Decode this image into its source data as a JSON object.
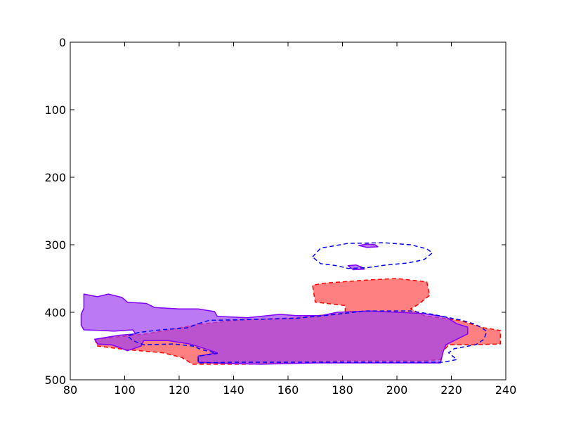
{
  "chart_data": {
    "type": "area",
    "title": "",
    "xlabel": "",
    "ylabel": "",
    "xlim": [
      80,
      240
    ],
    "ylim": [
      500,
      0
    ],
    "y_inverted": true,
    "grid": false,
    "legend": "none",
    "x_ticks": [
      80,
      100,
      120,
      140,
      160,
      180,
      200,
      220,
      240
    ],
    "y_ticks": [
      0,
      100,
      200,
      300,
      400,
      500
    ],
    "series": [
      {
        "style": "red filled region, dashed red outline",
        "fill": "#ff8080",
        "stroke": "#ff0000",
        "regions": [
          [
            [
              89,
              440
            ],
            [
              108,
              432
            ],
            [
              127,
              418
            ],
            [
              140,
              412
            ],
            [
              163,
              408
            ],
            [
              181,
              401
            ],
            [
              181,
              390
            ],
            [
              170,
              385
            ],
            [
              169,
              360
            ],
            [
              173,
              357
            ],
            [
              190,
              352
            ],
            [
              200,
              350
            ],
            [
              211,
              355
            ],
            [
              212,
              375
            ],
            [
              208,
              388
            ],
            [
              205,
              395
            ],
            [
              210,
              405
            ],
            [
              223,
              412
            ],
            [
              232,
              423
            ],
            [
              238,
              427
            ],
            [
              238,
              447
            ],
            [
              228,
              448
            ],
            [
              219,
              448
            ],
            [
              217,
              458
            ],
            [
              216,
              470
            ],
            [
              210,
              472
            ],
            [
              180,
              472
            ],
            [
              159,
              475
            ],
            [
              145,
              477
            ],
            [
              125,
              477
            ],
            [
              121,
              467
            ],
            [
              114,
              460
            ],
            [
              100,
              455
            ],
            [
              90,
              450
            ],
            [
              89,
              440
            ]
          ]
        ]
      },
      {
        "style": "purple filled region, solid purple outline",
        "fill": "#a040f0",
        "stroke": "#8000ff",
        "regions": [
          [
            [
              85,
              373
            ],
            [
              90,
              377
            ],
            [
              94,
              373
            ],
            [
              99,
              378
            ],
            [
              101,
              385
            ],
            [
              108,
              387
            ],
            [
              111,
              393
            ],
            [
              120,
              395
            ],
            [
              127,
              395
            ],
            [
              133,
              399
            ],
            [
              134,
              406
            ],
            [
              145,
              408
            ],
            [
              157,
              403
            ],
            [
              163,
              405
            ],
            [
              172,
              405
            ],
            [
              178,
              400
            ],
            [
              190,
              398
            ],
            [
              200,
              400
            ],
            [
              210,
              402
            ],
            [
              218,
              407
            ],
            [
              222,
              417
            ],
            [
              226,
              422
            ],
            [
              226,
              432
            ],
            [
              218,
              448
            ],
            [
              217,
              458
            ],
            [
              216,
              475
            ],
            [
              190,
              475
            ],
            [
              170,
              475
            ],
            [
              150,
              477
            ],
            [
              140,
              476
            ],
            [
              127,
              474
            ],
            [
              127,
              465
            ],
            [
              134,
              460
            ],
            [
              128,
              452
            ],
            [
              124,
              447
            ],
            [
              116,
              442
            ],
            [
              107,
              442
            ],
            [
              106,
              450
            ],
            [
              101,
              457
            ],
            [
              98,
              452
            ],
            [
              95,
              448
            ],
            [
              90,
              447
            ],
            [
              89,
              440
            ],
            [
              98,
              434
            ],
            [
              104,
              432
            ],
            [
              103,
              426
            ],
            [
              96,
              428
            ],
            [
              92,
              427
            ],
            [
              85,
              426
            ],
            [
              84,
              419
            ],
            [
              84,
              403
            ],
            [
              85,
              394
            ],
            [
              85,
              373
            ]
          ],
          [
            [
              186,
              301
            ],
            [
              189,
              299
            ],
            [
              192,
              300
            ],
            [
              193,
              303
            ],
            [
              189,
              304
            ],
            [
              186,
              301
            ]
          ],
          [
            [
              182,
              331
            ],
            [
              185,
              330
            ],
            [
              187,
              333
            ],
            [
              188,
              336
            ],
            [
              184,
              337
            ],
            [
              182,
              331
            ]
          ]
        ]
      },
      {
        "style": "blue dashed outline only",
        "stroke": "#0000ff",
        "regions": [
          [
            [
              127,
              417
            ],
            [
              131,
              412
            ],
            [
              143,
              411
            ],
            [
              163,
              409
            ],
            [
              178,
              403
            ],
            [
              188,
              398
            ],
            [
              205,
              398
            ],
            [
              213,
              403
            ],
            [
              224,
              412
            ],
            [
              229,
              418
            ],
            [
              233,
              428
            ],
            [
              232,
              440
            ],
            [
              229,
              448
            ],
            [
              221,
              454
            ],
            [
              219,
              460
            ],
            [
              222,
              470
            ],
            [
              217,
              474
            ],
            [
              200,
              474
            ],
            [
              180,
              474
            ],
            [
              160,
              474
            ],
            [
              150,
              474
            ],
            [
              140,
              474
            ],
            [
              127,
              475
            ],
            [
              127,
              465
            ],
            [
              134,
              461
            ],
            [
              128,
              455
            ],
            [
              125,
              450
            ],
            [
              118,
              447
            ],
            [
              107,
              448
            ],
            [
              103,
              442
            ],
            [
              101,
              435
            ],
            [
              105,
              430
            ],
            [
              113,
              426
            ],
            [
              123,
              423
            ],
            [
              127,
              417
            ]
          ],
          [
            [
              169,
              318
            ],
            [
              172,
              305
            ],
            [
              182,
              298
            ],
            [
              195,
              297
            ],
            [
              205,
              300
            ],
            [
              211,
              306
            ],
            [
              213,
              312
            ],
            [
              210,
              322
            ],
            [
              204,
              327
            ],
            [
              196,
              330
            ],
            [
              189,
              334
            ],
            [
              182,
              335
            ],
            [
              178,
              331
            ],
            [
              172,
              328
            ],
            [
              169,
              318
            ]
          ]
        ]
      }
    ]
  }
}
